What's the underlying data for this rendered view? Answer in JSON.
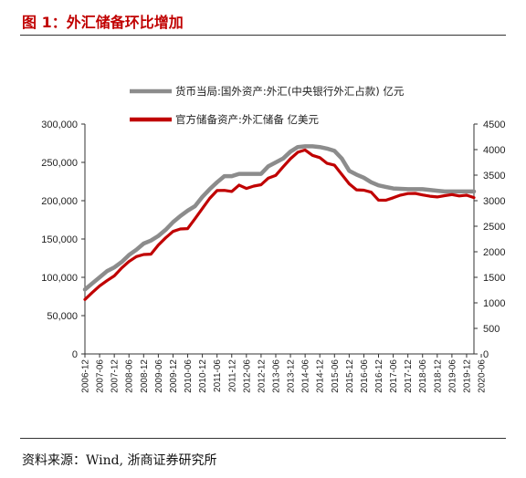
{
  "header": {
    "title": "图 1：外汇储备环比增加"
  },
  "footer": {
    "source_label": "资料来源：",
    "source_text": "Wind, 浙商证券研究所"
  },
  "colors": {
    "series_fx_funds": "#8c8c8c",
    "series_reserves": "#c00000",
    "title": "#c00000"
  },
  "chart_data": {
    "type": "line",
    "title": "",
    "legend_position": "top",
    "grid": false,
    "x_range": [
      "2006-12",
      "2020-03"
    ],
    "x_ticks": [
      "2006-12",
      "2007-06",
      "2007-12",
      "2008-06",
      "2008-12",
      "2009-06",
      "2009-12",
      "2010-06",
      "2010-12",
      "2011-06",
      "2011-12",
      "2012-06",
      "2012-12",
      "2013-06",
      "2013-12",
      "2014-06",
      "2014-12",
      "2015-06",
      "2015-12",
      "2016-06",
      "2016-12",
      "2017-06",
      "2017-12",
      "2018-06",
      "2018-12",
      "2019-06",
      "2019-12",
      "2020-06"
    ],
    "y_left": {
      "ticks": [
        "0",
        "50,000",
        "100,000",
        "150,000",
        "200,000",
        "250,000",
        "300,000"
      ],
      "range": [
        0,
        300000
      ]
    },
    "y_right": {
      "ticks": [
        "0",
        "500",
        "1000",
        "1500",
        "2000",
        "2500",
        "3000",
        "3500",
        "4000",
        "4500"
      ],
      "range": [
        0,
        4500
      ]
    },
    "series": [
      {
        "name": "货币当局:国外资产:外汇(中央银行外汇占款) 亿元",
        "axis": "left",
        "points": [
          [
            "2006-12",
            84000
          ],
          [
            "2007-03",
            92000
          ],
          [
            "2007-06",
            100000
          ],
          [
            "2007-09",
            108000
          ],
          [
            "2007-12",
            113000
          ],
          [
            "2008-03",
            120000
          ],
          [
            "2008-06",
            129000
          ],
          [
            "2008-09",
            136000
          ],
          [
            "2008-12",
            144000
          ],
          [
            "2009-03",
            148000
          ],
          [
            "2009-06",
            154000
          ],
          [
            "2009-09",
            162000
          ],
          [
            "2009-12",
            172000
          ],
          [
            "2010-03",
            180000
          ],
          [
            "2010-06",
            187000
          ],
          [
            "2010-09",
            193000
          ],
          [
            "2010-12",
            205000
          ],
          [
            "2011-03",
            215000
          ],
          [
            "2011-06",
            224000
          ],
          [
            "2011-09",
            232000
          ],
          [
            "2011-12",
            232000
          ],
          [
            "2012-03",
            235000
          ],
          [
            "2012-06",
            235000
          ],
          [
            "2012-09",
            235000
          ],
          [
            "2012-12",
            235000
          ],
          [
            "2013-03",
            245000
          ],
          [
            "2013-06",
            250000
          ],
          [
            "2013-09",
            255000
          ],
          [
            "2013-12",
            264000
          ],
          [
            "2014-03",
            270000
          ],
          [
            "2014-06",
            271000
          ],
          [
            "2014-09",
            271000
          ],
          [
            "2014-12",
            270000
          ],
          [
            "2015-03",
            268000
          ],
          [
            "2015-06",
            265000
          ],
          [
            "2015-09",
            255000
          ],
          [
            "2015-12",
            239000
          ],
          [
            "2016-03",
            234000
          ],
          [
            "2016-06",
            230000
          ],
          [
            "2016-09",
            224000
          ],
          [
            "2016-12",
            220000
          ],
          [
            "2017-03",
            218000
          ],
          [
            "2017-06",
            216000
          ],
          [
            "2017-09",
            215500
          ],
          [
            "2017-12",
            215000
          ],
          [
            "2018-03",
            215000
          ],
          [
            "2018-06",
            215000
          ],
          [
            "2018-09",
            214000
          ],
          [
            "2018-12",
            213000
          ],
          [
            "2019-03",
            212000
          ],
          [
            "2019-06",
            212000
          ],
          [
            "2019-09",
            212000
          ],
          [
            "2019-12",
            212000
          ],
          [
            "2020-03",
            212000
          ]
        ]
      },
      {
        "name": "官方储备资产:外汇储备 亿美元",
        "axis": "right",
        "points": [
          [
            "2006-12",
            1066
          ],
          [
            "2007-03",
            1202
          ],
          [
            "2007-06",
            1332
          ],
          [
            "2007-09",
            1434
          ],
          [
            "2007-12",
            1528
          ],
          [
            "2008-03",
            1682
          ],
          [
            "2008-06",
            1809
          ],
          [
            "2008-09",
            1906
          ],
          [
            "2008-12",
            1946
          ],
          [
            "2009-03",
            1954
          ],
          [
            "2009-06",
            2132
          ],
          [
            "2009-09",
            2273
          ],
          [
            "2009-12",
            2399
          ],
          [
            "2010-03",
            2447
          ],
          [
            "2010-06",
            2454
          ],
          [
            "2010-09",
            2648
          ],
          [
            "2010-12",
            2847
          ],
          [
            "2011-03",
            3045
          ],
          [
            "2011-06",
            3198
          ],
          [
            "2011-09",
            3202
          ],
          [
            "2011-12",
            3181
          ],
          [
            "2012-03",
            3305
          ],
          [
            "2012-06",
            3240
          ],
          [
            "2012-09",
            3285
          ],
          [
            "2012-12",
            3312
          ],
          [
            "2013-03",
            3443
          ],
          [
            "2013-06",
            3497
          ],
          [
            "2013-09",
            3663
          ],
          [
            "2013-12",
            3821
          ],
          [
            "2014-03",
            3948
          ],
          [
            "2014-06",
            3993
          ],
          [
            "2014-09",
            3888
          ],
          [
            "2014-12",
            3843
          ],
          [
            "2015-03",
            3730
          ],
          [
            "2015-06",
            3694
          ],
          [
            "2015-09",
            3514
          ],
          [
            "2015-12",
            3330
          ],
          [
            "2016-03",
            3213
          ],
          [
            "2016-06",
            3205
          ],
          [
            "2016-09",
            3166
          ],
          [
            "2016-12",
            3011
          ],
          [
            "2017-03",
            3009
          ],
          [
            "2017-06",
            3057
          ],
          [
            "2017-09",
            3109
          ],
          [
            "2017-12",
            3140
          ],
          [
            "2018-03",
            3143
          ],
          [
            "2018-06",
            3112
          ],
          [
            "2018-09",
            3087
          ],
          [
            "2018-12",
            3073
          ],
          [
            "2019-03",
            3099
          ],
          [
            "2019-06",
            3119
          ],
          [
            "2019-09",
            3092
          ],
          [
            "2019-12",
            3108
          ],
          [
            "2020-03",
            3061
          ]
        ]
      }
    ]
  }
}
